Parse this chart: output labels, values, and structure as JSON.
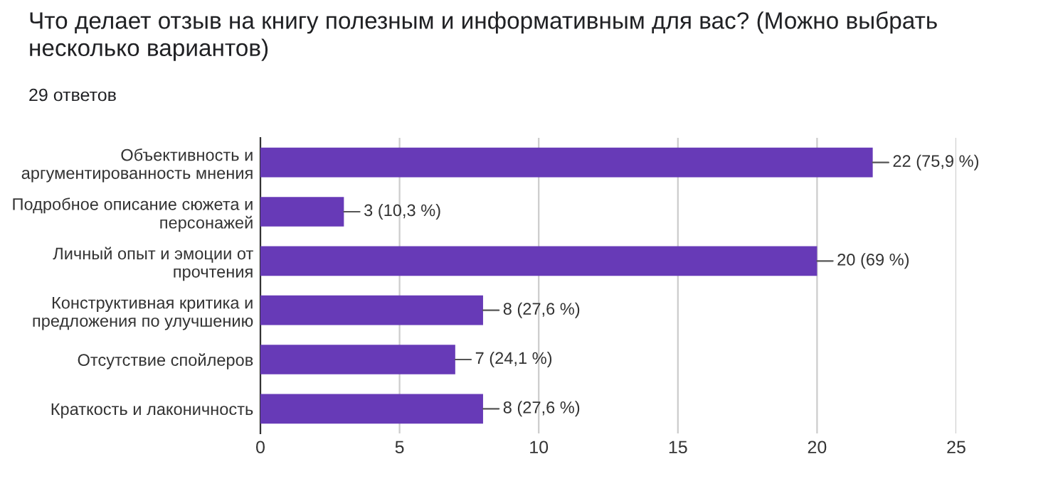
{
  "chart_data": {
    "type": "bar",
    "orientation": "horizontal",
    "title": "Что делает отзыв на книгу полезным и информативным для вас? (Можно выбрать\nнесколько вариантов)",
    "subtitle": "29 ответов",
    "categories": [
      "Объективность и\nаргументированность мнения",
      "Подробное описание сюжета и\nперсонажей",
      "Личный опыт и эмоции от\nпрочтения",
      "Конструктивная критика и\nпредложения по улучшению",
      "Отсутствие спойлеров",
      "Краткость и лаконичность"
    ],
    "values": [
      22,
      3,
      20,
      8,
      7,
      8
    ],
    "value_labels": [
      "22 (75,9 %)",
      "3 (10,3 %)",
      "20 (69 %)",
      "8 (27,6 %)",
      "7 (24,1 %)",
      "8 (27,6 %)"
    ],
    "color": "#673ab7",
    "xlim": [
      0,
      25
    ],
    "xticks": [
      0,
      5,
      10,
      15,
      20,
      25
    ],
    "grid": "x"
  }
}
